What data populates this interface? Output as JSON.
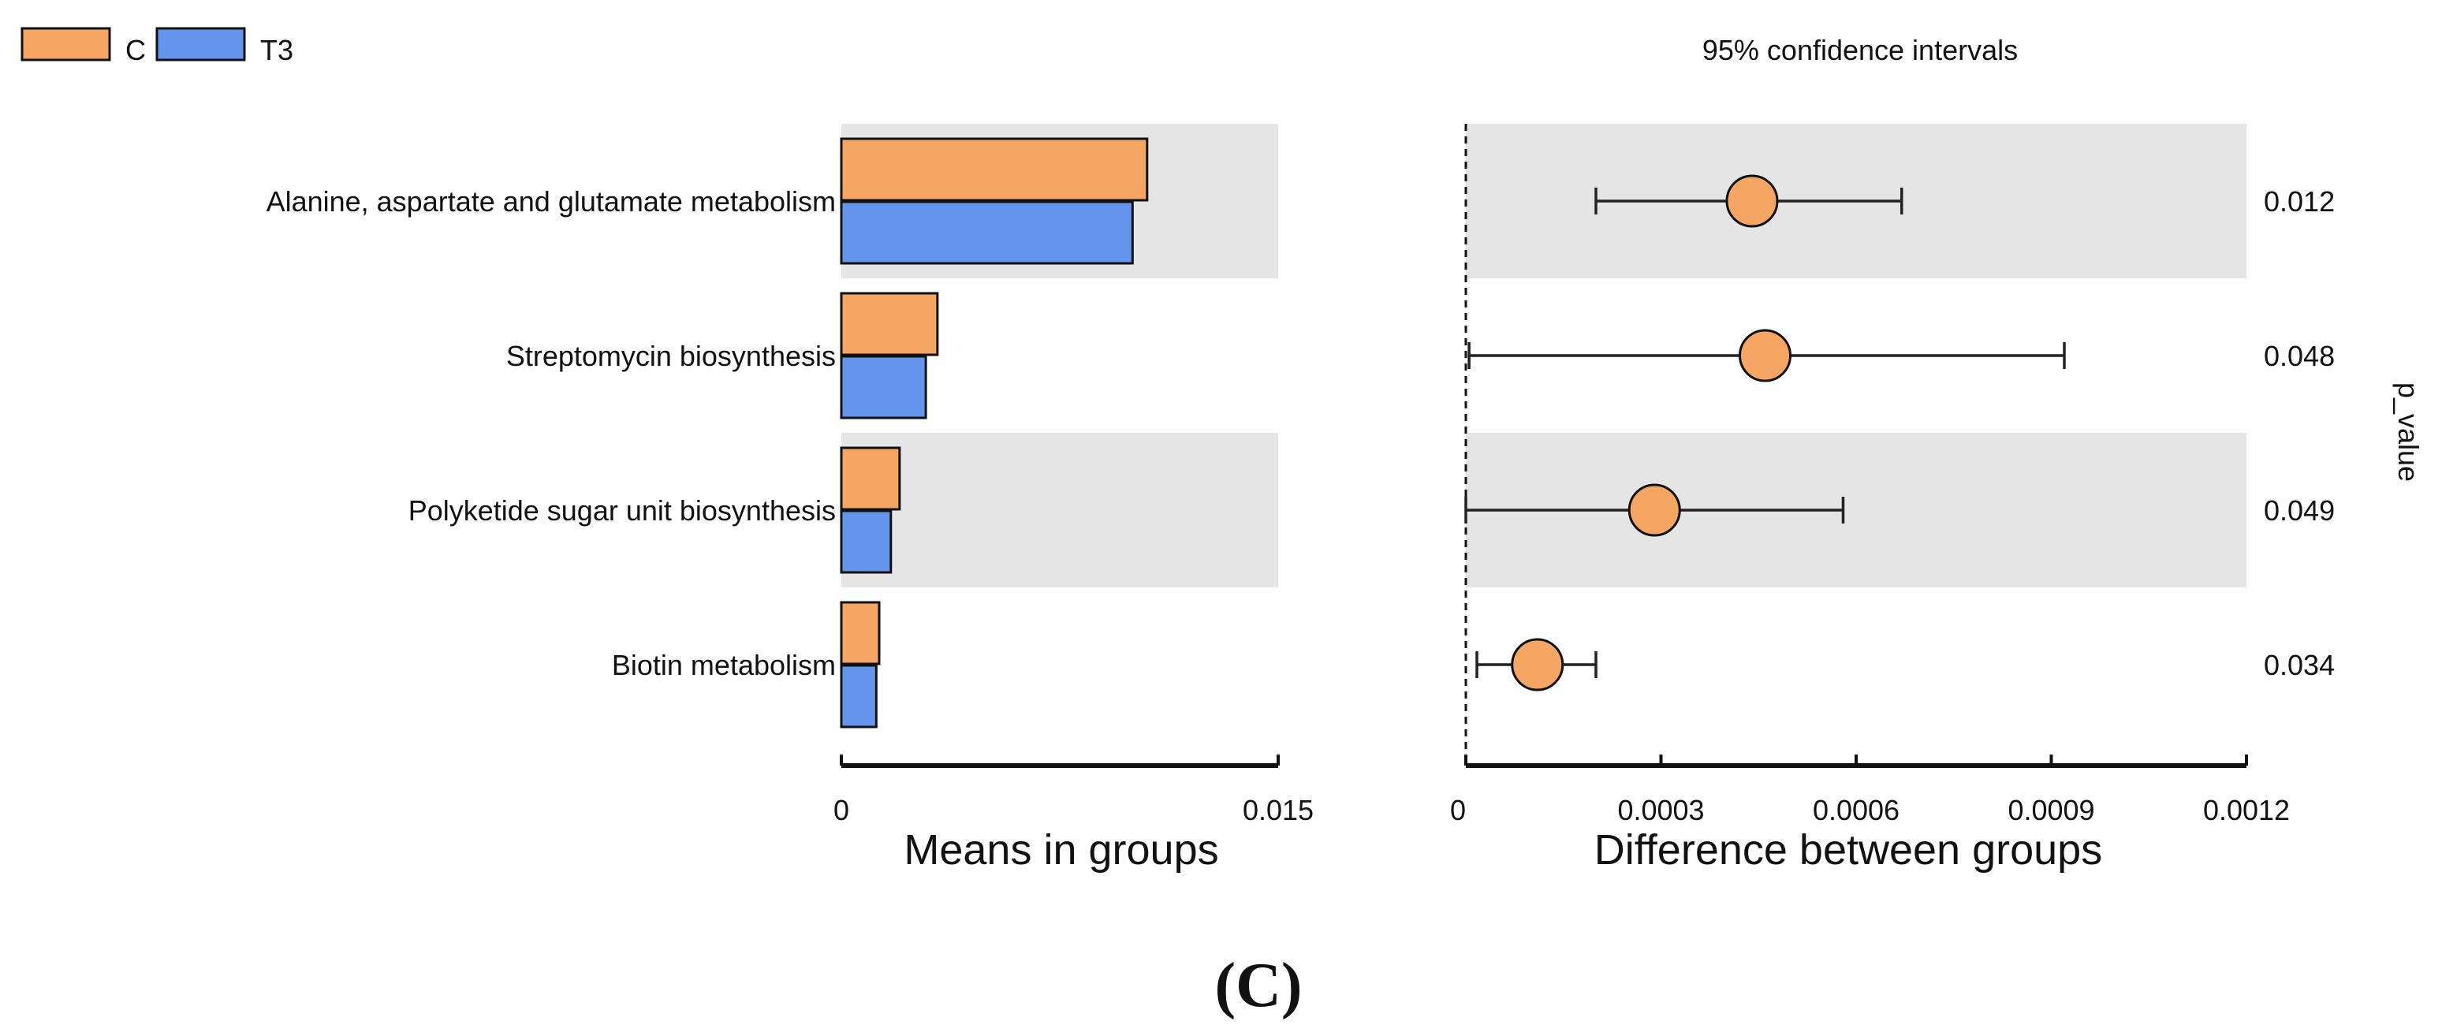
{
  "chart_data": {
    "type": "bar",
    "panel_label": "(C)",
    "legend": {
      "position": "top-left",
      "entries": [
        {
          "name": "C",
          "color": "#F5A662"
        },
        {
          "name": "T3",
          "color": "#6495ED"
        }
      ]
    },
    "categories": [
      "Alanine, aspartate and glutamate metabolism",
      "Streptomycin biosynthesis",
      "Polyketide sugar unit biosynthesis",
      "Biotin metabolism"
    ],
    "means_panel": {
      "xlabel": "Means in groups",
      "xlim": [
        0,
        0.015
      ],
      "ticks": [
        0,
        0.015
      ],
      "tick_labels": [
        "0",
        "0.015"
      ],
      "series": [
        {
          "name": "C",
          "color": "#F5A662",
          "values": [
            0.0105,
            0.0033,
            0.002,
            0.0013
          ]
        },
        {
          "name": "T3",
          "color": "#6495ED",
          "values": [
            0.01,
            0.0029,
            0.0017,
            0.0012
          ]
        }
      ]
    },
    "difference_panel": {
      "title": "95% confidence intervals",
      "xlabel": "Difference between groups",
      "xlim": [
        0,
        0.0012
      ],
      "ticks": [
        0,
        0.0003,
        0.0006,
        0.0009,
        0.0012
      ],
      "tick_labels": [
        "0",
        "0.0003",
        "0.0006",
        "0.0009",
        "0.0012"
      ],
      "point_color": "#F5A662",
      "estimate": [
        0.00044,
        0.00046,
        0.00029,
        0.00011
      ],
      "ci_low": [
        0.0002,
        5e-06,
        0.0,
        1.7e-05
      ],
      "ci_high": [
        0.00067,
        0.00092,
        0.00058,
        0.0002
      ],
      "reference_line": 0
    },
    "p_values": {
      "label": "p_value",
      "values": [
        "0.012",
        "0.048",
        "0.049",
        "0.034"
      ]
    },
    "row_shading_color": "#E5E5E5"
  }
}
